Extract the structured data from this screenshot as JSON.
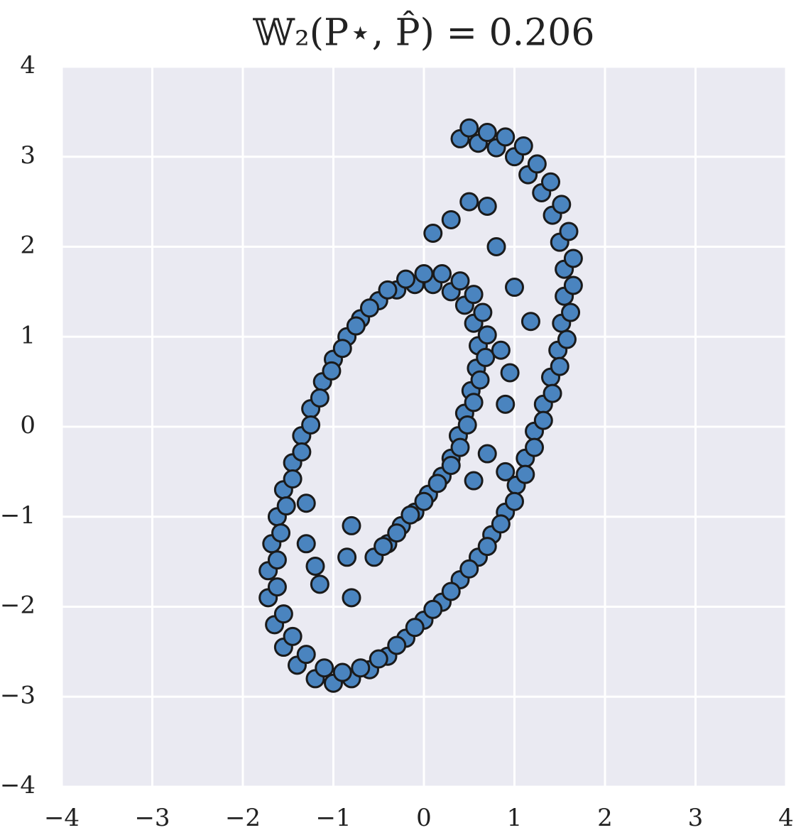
{
  "chart_data": {
    "type": "scatter",
    "title": "𝕎₂(P⋆, P̂) = 0.206",
    "color": "#4a84bf",
    "edgecolor": "#1a1a1a",
    "background": "#eaeaf2",
    "grid": true,
    "xlim": [
      -4,
      4
    ],
    "ylim": [
      -4,
      4
    ],
    "xticks": [
      {
        "value": -4,
        "label": "−4"
      },
      {
        "value": -3,
        "label": "−3"
      },
      {
        "value": -2,
        "label": "−2"
      },
      {
        "value": -1,
        "label": "−1"
      },
      0,
      1,
      2,
      3,
      4
    ],
    "yticks": [
      {
        "value": -4,
        "label": "−4"
      },
      {
        "value": -3,
        "label": "−3"
      },
      {
        "value": -2,
        "label": "−2"
      },
      {
        "value": -1,
        "label": "−1"
      },
      0,
      1,
      2,
      3,
      4
    ],
    "x": [
      -0.55,
      -0.4,
      -0.25,
      -0.1,
      0.05,
      0.2,
      0.3,
      0.38,
      0.45,
      0.52,
      0.58,
      0.6,
      0.55,
      0.45,
      0.3,
      0.1,
      -0.1,
      -0.3,
      -0.5,
      -0.7,
      -0.85,
      -1.0,
      -1.12,
      -1.25,
      -1.35,
      -1.45,
      -1.55,
      -1.62,
      -1.68,
      -1.72,
      -1.72,
      -1.65,
      -1.55,
      -1.4,
      -1.2,
      -1.0,
      -0.8,
      -0.6,
      -0.4,
      -0.2,
      0.0,
      0.2,
      0.4,
      0.6,
      0.75,
      0.9,
      1.02,
      1.12,
      1.22,
      1.32,
      1.4,
      1.48,
      1.52,
      1.55,
      1.55,
      1.5,
      1.42,
      1.3,
      1.15,
      1.0,
      0.8,
      0.6,
      0.4,
      -0.45,
      -0.3,
      -0.15,
      0,
      0.15,
      0.3,
      0.4,
      0.48,
      0.55,
      0.62,
      0.68,
      0.7,
      0.65,
      0.55,
      0.4,
      0.2,
      0,
      -0.2,
      -0.4,
      -0.6,
      -0.75,
      -0.9,
      -1.02,
      -1.15,
      -1.25,
      -1.35,
      -1.45,
      -1.52,
      -1.58,
      -1.62,
      -1.62,
      -1.55,
      -1.45,
      -1.3,
      -1.1,
      -0.9,
      -0.7,
      -0.5,
      -0.3,
      -0.1,
      0.1,
      0.3,
      0.5,
      0.7,
      0.85,
      1.0,
      1.12,
      1.22,
      1.32,
      1.42,
      1.5,
      1.58,
      1.62,
      1.65,
      1.65,
      1.6,
      1.52,
      1.4,
      1.25,
      1.1,
      0.9,
      0.7,
      0.5,
      0.85,
      0.95,
      0.9,
      0.7,
      0.55,
      -1.3,
      -1.3,
      -1.2,
      -1.15,
      -0.85,
      -0.8,
      -0.8,
      0.8,
      1.0,
      1.18,
      0.5,
      0.7,
      0.3,
      0.1,
      0.9
    ],
    "y": [
      -1.45,
      -1.3,
      -1.1,
      -0.95,
      -0.75,
      -0.55,
      -0.35,
      -0.1,
      0.15,
      0.4,
      0.65,
      0.9,
      1.15,
      1.35,
      1.5,
      1.58,
      1.58,
      1.52,
      1.4,
      1.2,
      1.0,
      0.75,
      0.5,
      0.2,
      -0.1,
      -0.4,
      -0.7,
      -1.0,
      -1.3,
      -1.6,
      -1.9,
      -2.2,
      -2.45,
      -2.65,
      -2.8,
      -2.85,
      -2.8,
      -2.7,
      -2.55,
      -2.35,
      -2.15,
      -1.95,
      -1.7,
      -1.45,
      -1.2,
      -0.95,
      -0.65,
      -0.35,
      -0.05,
      0.25,
      0.55,
      0.85,
      1.15,
      1.45,
      1.75,
      2.05,
      2.35,
      2.6,
      2.8,
      3.0,
      3.1,
      3.15,
      3.2,
      -1.33,
      -1.18,
      -0.98,
      -0.83,
      -0.63,
      -0.43,
      -0.23,
      0.02,
      0.27,
      0.52,
      0.77,
      1.02,
      1.27,
      1.47,
      1.62,
      1.7,
      1.7,
      1.64,
      1.52,
      1.32,
      1.12,
      0.87,
      0.62,
      0.32,
      0.02,
      -0.28,
      -0.58,
      -0.88,
      -1.18,
      -1.48,
      -1.78,
      -2.08,
      -2.33,
      -2.53,
      -2.68,
      -2.73,
      -2.68,
      -2.58,
      -2.43,
      -2.23,
      -2.03,
      -1.83,
      -1.58,
      -1.33,
      -1.08,
      -0.83,
      -0.53,
      -0.23,
      0.07,
      0.37,
      0.67,
      0.97,
      1.27,
      1.57,
      1.87,
      2.17,
      2.47,
      2.72,
      2.92,
      3.12,
      3.22,
      3.27,
      3.32,
      0.85,
      0.6,
      0.25,
      -0.3,
      -0.6,
      -0.85,
      -1.3,
      -1.55,
      -1.75,
      -1.45,
      -1.1,
      -1.9,
      2.0,
      1.55,
      1.17,
      2.5,
      2.45,
      2.3,
      2.15,
      -0.5
    ]
  }
}
